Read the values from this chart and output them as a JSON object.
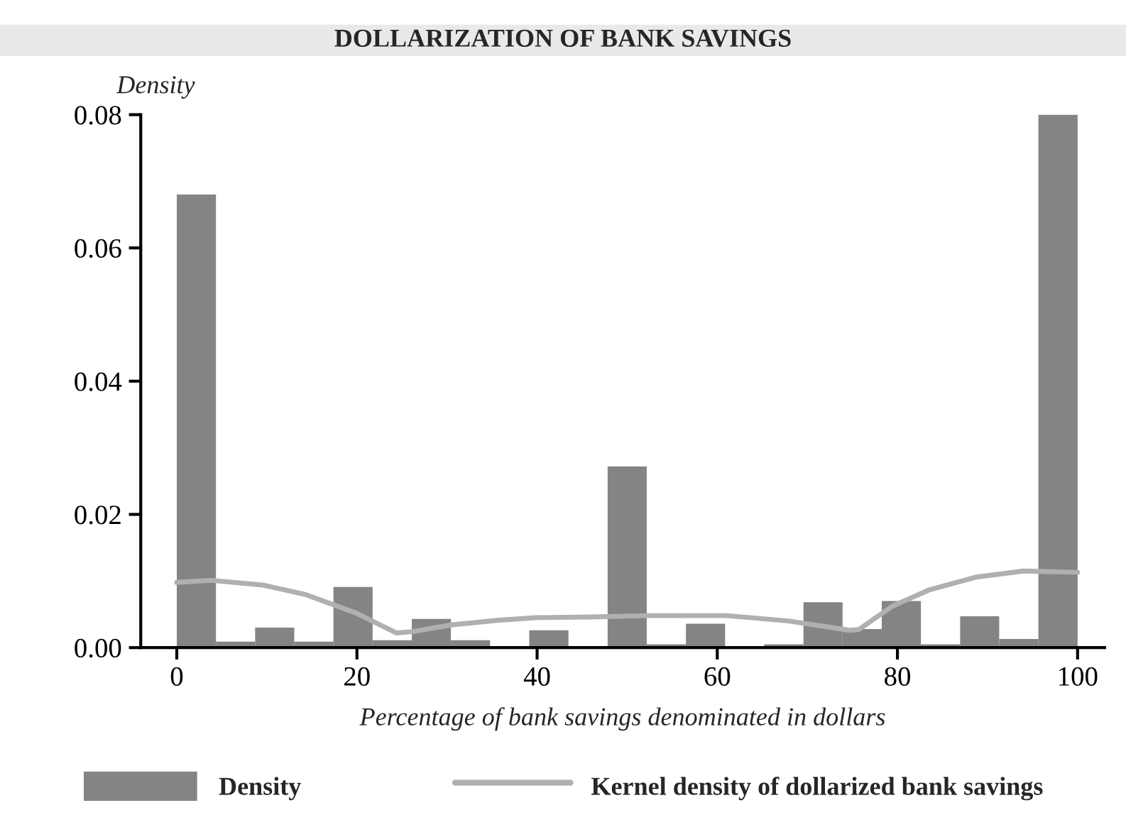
{
  "chart_data": {
    "type": "histogram",
    "title": "DOLLARIZATION OF BANK SAVINGS",
    "xlabel": "Percentage of bank savings denominated in dollars",
    "ylabel": "Density",
    "series": [
      {
        "name": "Density",
        "color": "#838483",
        "bins": [
          0,
          4.35,
          8.7,
          13.04,
          17.39,
          21.74,
          26.09,
          30.43,
          34.78,
          39.13,
          43.48,
          47.83,
          52.17,
          56.52,
          60.87,
          65.22,
          69.57,
          73.91,
          78.26,
          82.61,
          86.96,
          91.3,
          95.65,
          100
        ],
        "values": [
          0.068,
          0.0009,
          0.003,
          0.0009,
          0.0091,
          0.0011,
          0.0043,
          0.0011,
          0,
          0.0026,
          0,
          0.0272,
          0.0005,
          0.0036,
          0,
          0.0005,
          0.0068,
          0.0028,
          0.007,
          0.0005,
          0.0047,
          0.0013,
          0.08
        ]
      },
      {
        "name": "Kernel density of dollarized bank savings",
        "type": "line",
        "color": "#b0b0b0",
        "x": [
          0,
          3.8,
          9.5,
          14.2,
          19.9,
          24.4,
          26.2,
          30.4,
          35.6,
          39.8,
          46.0,
          52.3,
          61.1,
          67.9,
          74.7,
          75.7,
          79.4,
          83.6,
          88.8,
          94.0,
          100
        ],
        "values": [
          0.0098,
          0.0101,
          0.0094,
          0.008,
          0.0052,
          0.0022,
          0.0024,
          0.0034,
          0.0041,
          0.0045,
          0.0046,
          0.0048,
          0.0048,
          0.004,
          0.0026,
          0.0027,
          0.0062,
          0.0087,
          0.0106,
          0.0115,
          0.0113
        ]
      }
    ],
    "xlim": [
      -4,
      103
    ],
    "xticks": [
      0,
      20,
      40,
      60,
      80,
      100
    ],
    "ylim": [
      0,
      0.08
    ],
    "yticks": [
      {
        "value": 0,
        "label": "0.00"
      },
      {
        "value": 0.02,
        "label": "0.02"
      },
      {
        "value": 0.04,
        "label": "0.04"
      },
      {
        "value": 0.06,
        "label": "0.06"
      },
      {
        "value": 0.08,
        "label": "0.08"
      }
    ],
    "legend": "bottom",
    "grid": false
  }
}
